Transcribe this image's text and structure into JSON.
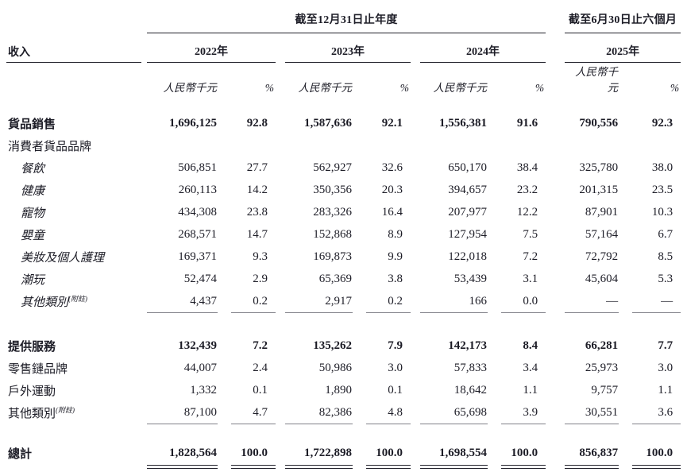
{
  "table": {
    "period_groups": [
      {
        "title": "截至12月31日止年度",
        "years": [
          "2022年",
          "2023年",
          "2024年"
        ]
      },
      {
        "title": "截至6月30日止六個月",
        "years": [
          "2025年"
        ]
      }
    ],
    "row_header": "收入",
    "unit_label": "人民幣千元",
    "pct_label": "%",
    "note_superscript": "(附註)",
    "rows": [
      {
        "label": "貨品銷售",
        "style": "bold",
        "values": [
          "1,696,125",
          "92.8",
          "1,587,636",
          "92.1",
          "1,556,381",
          "91.6",
          "790,556",
          "92.3"
        ]
      },
      {
        "label": "消費者貨品品牌",
        "style": "plain",
        "values": []
      },
      {
        "label": "餐飲",
        "style": "sub",
        "values": [
          "506,851",
          "27.7",
          "562,927",
          "32.6",
          "650,170",
          "38.4",
          "325,780",
          "38.0"
        ]
      },
      {
        "label": "健康",
        "style": "sub",
        "values": [
          "260,113",
          "14.2",
          "350,356",
          "20.3",
          "394,657",
          "23.2",
          "201,315",
          "23.5"
        ]
      },
      {
        "label": "寵物",
        "style": "sub",
        "values": [
          "434,308",
          "23.8",
          "283,326",
          "16.4",
          "207,977",
          "12.2",
          "87,901",
          "10.3"
        ]
      },
      {
        "label": "嬰童",
        "style": "sub",
        "values": [
          "268,571",
          "14.7",
          "152,868",
          "8.9",
          "127,954",
          "7.5",
          "57,164",
          "6.7"
        ]
      },
      {
        "label": "美妝及個人護理",
        "style": "sub",
        "values": [
          "169,371",
          "9.3",
          "169,873",
          "9.9",
          "122,018",
          "7.2",
          "72,792",
          "8.5"
        ]
      },
      {
        "label": "潮玩",
        "style": "sub",
        "values": [
          "52,474",
          "2.9",
          "65,369",
          "3.8",
          "53,439",
          "3.1",
          "45,604",
          "5.3"
        ]
      },
      {
        "label": "其他類別",
        "style": "sub",
        "note": true,
        "rule_after": true,
        "values": [
          "4,437",
          "0.2",
          "2,917",
          "0.2",
          "166",
          "0.0",
          "—",
          "—"
        ]
      },
      {
        "spacer": true
      },
      {
        "label": "提供服務",
        "style": "bold",
        "values": [
          "132,439",
          "7.2",
          "135,262",
          "7.9",
          "142,173",
          "8.4",
          "66,281",
          "7.7"
        ]
      },
      {
        "label": "零售鏈品牌",
        "style": "plain",
        "values": [
          "44,007",
          "2.4",
          "50,986",
          "3.0",
          "57,833",
          "3.4",
          "25,973",
          "3.0"
        ]
      },
      {
        "label": "戶外運動",
        "style": "plain",
        "values": [
          "1,332",
          "0.1",
          "1,890",
          "0.1",
          "18,642",
          "1.1",
          "9,757",
          "1.1"
        ]
      },
      {
        "label": "其他類別",
        "style": "plain",
        "note": true,
        "rule_after": true,
        "values": [
          "87,100",
          "4.7",
          "82,386",
          "4.8",
          "65,698",
          "3.9",
          "30,551",
          "3.6"
        ]
      },
      {
        "spacer_small": true
      },
      {
        "label": "總計",
        "style": "bold",
        "total": true,
        "double_rule_after": true,
        "values": [
          "1,828,564",
          "100.0",
          "1,722,898",
          "100.0",
          "1,698,554",
          "100.0",
          "856,837",
          "100.0"
        ]
      }
    ],
    "colors": {
      "ink": "#1c1c26",
      "thin_rule": "#82828a"
    }
  }
}
